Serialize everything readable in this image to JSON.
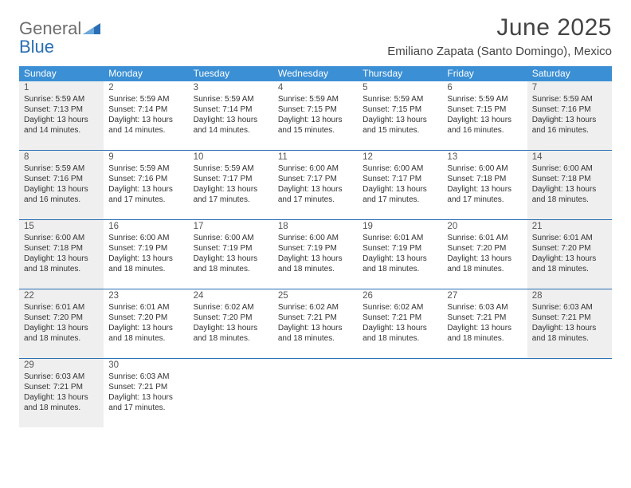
{
  "brand": {
    "word1": "General",
    "word2": "Blue"
  },
  "title": "June 2025",
  "location": "Emiliano Zapata (Santo Domingo), Mexico",
  "colors": {
    "header_bg": "#3b8fd4",
    "header_text": "#ffffff",
    "rule": "#2a6fb5",
    "shade": "#efefef",
    "text": "#333333",
    "logo_gray": "#6e6e6e",
    "logo_blue": "#2a6fb5"
  },
  "dow": [
    "Sunday",
    "Monday",
    "Tuesday",
    "Wednesday",
    "Thursday",
    "Friday",
    "Saturday"
  ],
  "weeks": [
    [
      {
        "d": "1",
        "shade": true,
        "l1": "Sunrise: 5:59 AM",
        "l2": "Sunset: 7:13 PM",
        "l3": "Daylight: 13 hours",
        "l4": "and 14 minutes."
      },
      {
        "d": "2",
        "l1": "Sunrise: 5:59 AM",
        "l2": "Sunset: 7:14 PM",
        "l3": "Daylight: 13 hours",
        "l4": "and 14 minutes."
      },
      {
        "d": "3",
        "l1": "Sunrise: 5:59 AM",
        "l2": "Sunset: 7:14 PM",
        "l3": "Daylight: 13 hours",
        "l4": "and 14 minutes."
      },
      {
        "d": "4",
        "l1": "Sunrise: 5:59 AM",
        "l2": "Sunset: 7:15 PM",
        "l3": "Daylight: 13 hours",
        "l4": "and 15 minutes."
      },
      {
        "d": "5",
        "l1": "Sunrise: 5:59 AM",
        "l2": "Sunset: 7:15 PM",
        "l3": "Daylight: 13 hours",
        "l4": "and 15 minutes."
      },
      {
        "d": "6",
        "l1": "Sunrise: 5:59 AM",
        "l2": "Sunset: 7:15 PM",
        "l3": "Daylight: 13 hours",
        "l4": "and 16 minutes."
      },
      {
        "d": "7",
        "shade": true,
        "l1": "Sunrise: 5:59 AM",
        "l2": "Sunset: 7:16 PM",
        "l3": "Daylight: 13 hours",
        "l4": "and 16 minutes."
      }
    ],
    [
      {
        "d": "8",
        "shade": true,
        "l1": "Sunrise: 5:59 AM",
        "l2": "Sunset: 7:16 PM",
        "l3": "Daylight: 13 hours",
        "l4": "and 16 minutes."
      },
      {
        "d": "9",
        "l1": "Sunrise: 5:59 AM",
        "l2": "Sunset: 7:16 PM",
        "l3": "Daylight: 13 hours",
        "l4": "and 17 minutes."
      },
      {
        "d": "10",
        "l1": "Sunrise: 5:59 AM",
        "l2": "Sunset: 7:17 PM",
        "l3": "Daylight: 13 hours",
        "l4": "and 17 minutes."
      },
      {
        "d": "11",
        "l1": "Sunrise: 6:00 AM",
        "l2": "Sunset: 7:17 PM",
        "l3": "Daylight: 13 hours",
        "l4": "and 17 minutes."
      },
      {
        "d": "12",
        "l1": "Sunrise: 6:00 AM",
        "l2": "Sunset: 7:17 PM",
        "l3": "Daylight: 13 hours",
        "l4": "and 17 minutes."
      },
      {
        "d": "13",
        "l1": "Sunrise: 6:00 AM",
        "l2": "Sunset: 7:18 PM",
        "l3": "Daylight: 13 hours",
        "l4": "and 17 minutes."
      },
      {
        "d": "14",
        "shade": true,
        "l1": "Sunrise: 6:00 AM",
        "l2": "Sunset: 7:18 PM",
        "l3": "Daylight: 13 hours",
        "l4": "and 18 minutes."
      }
    ],
    [
      {
        "d": "15",
        "shade": true,
        "l1": "Sunrise: 6:00 AM",
        "l2": "Sunset: 7:18 PM",
        "l3": "Daylight: 13 hours",
        "l4": "and 18 minutes."
      },
      {
        "d": "16",
        "l1": "Sunrise: 6:00 AM",
        "l2": "Sunset: 7:19 PM",
        "l3": "Daylight: 13 hours",
        "l4": "and 18 minutes."
      },
      {
        "d": "17",
        "l1": "Sunrise: 6:00 AM",
        "l2": "Sunset: 7:19 PM",
        "l3": "Daylight: 13 hours",
        "l4": "and 18 minutes."
      },
      {
        "d": "18",
        "l1": "Sunrise: 6:00 AM",
        "l2": "Sunset: 7:19 PM",
        "l3": "Daylight: 13 hours",
        "l4": "and 18 minutes."
      },
      {
        "d": "19",
        "l1": "Sunrise: 6:01 AM",
        "l2": "Sunset: 7:19 PM",
        "l3": "Daylight: 13 hours",
        "l4": "and 18 minutes."
      },
      {
        "d": "20",
        "l1": "Sunrise: 6:01 AM",
        "l2": "Sunset: 7:20 PM",
        "l3": "Daylight: 13 hours",
        "l4": "and 18 minutes."
      },
      {
        "d": "21",
        "shade": true,
        "l1": "Sunrise: 6:01 AM",
        "l2": "Sunset: 7:20 PM",
        "l3": "Daylight: 13 hours",
        "l4": "and 18 minutes."
      }
    ],
    [
      {
        "d": "22",
        "shade": true,
        "l1": "Sunrise: 6:01 AM",
        "l2": "Sunset: 7:20 PM",
        "l3": "Daylight: 13 hours",
        "l4": "and 18 minutes."
      },
      {
        "d": "23",
        "l1": "Sunrise: 6:01 AM",
        "l2": "Sunset: 7:20 PM",
        "l3": "Daylight: 13 hours",
        "l4": "and 18 minutes."
      },
      {
        "d": "24",
        "l1": "Sunrise: 6:02 AM",
        "l2": "Sunset: 7:20 PM",
        "l3": "Daylight: 13 hours",
        "l4": "and 18 minutes."
      },
      {
        "d": "25",
        "l1": "Sunrise: 6:02 AM",
        "l2": "Sunset: 7:21 PM",
        "l3": "Daylight: 13 hours",
        "l4": "and 18 minutes."
      },
      {
        "d": "26",
        "l1": "Sunrise: 6:02 AM",
        "l2": "Sunset: 7:21 PM",
        "l3": "Daylight: 13 hours",
        "l4": "and 18 minutes."
      },
      {
        "d": "27",
        "l1": "Sunrise: 6:03 AM",
        "l2": "Sunset: 7:21 PM",
        "l3": "Daylight: 13 hours",
        "l4": "and 18 minutes."
      },
      {
        "d": "28",
        "shade": true,
        "l1": "Sunrise: 6:03 AM",
        "l2": "Sunset: 7:21 PM",
        "l3": "Daylight: 13 hours",
        "l4": "and 18 minutes."
      }
    ],
    [
      {
        "d": "29",
        "shade": true,
        "l1": "Sunrise: 6:03 AM",
        "l2": "Sunset: 7:21 PM",
        "l3": "Daylight: 13 hours",
        "l4": "and 18 minutes."
      },
      {
        "d": "30",
        "l1": "Sunrise: 6:03 AM",
        "l2": "Sunset: 7:21 PM",
        "l3": "Daylight: 13 hours",
        "l4": "and 17 minutes."
      },
      {
        "empty": true
      },
      {
        "empty": true
      },
      {
        "empty": true
      },
      {
        "empty": true
      },
      {
        "empty": true
      }
    ]
  ]
}
